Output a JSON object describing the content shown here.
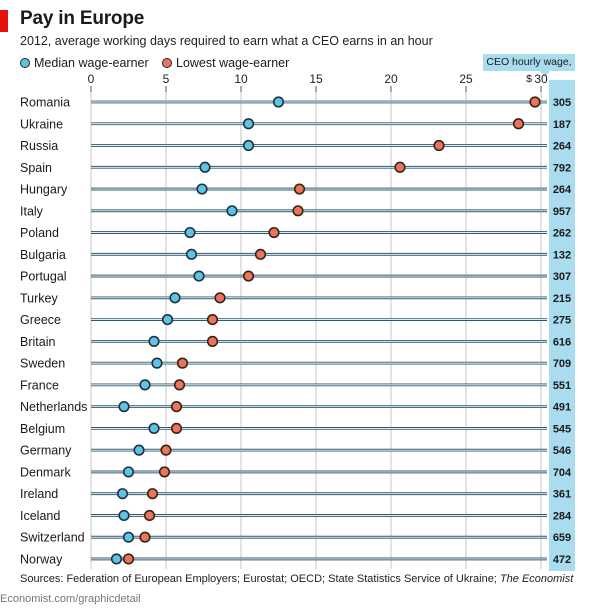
{
  "header": {
    "title": "Pay in Europe",
    "subtitle": "2012, average working days required to earn what a CEO earns in an hour"
  },
  "legend": {
    "median_label": "Median wage-earner",
    "lowest_label": "Lowest wage-earner",
    "ceo_label": "CEO hourly wage, $"
  },
  "colors": {
    "median": "#5ec3e4",
    "lowest": "#e8765a",
    "accent_red": "#e3120b",
    "wage_box": "#a8dcee",
    "row_line": "#2c5a72"
  },
  "footer": {
    "source": "Sources: Federation of European Employers; Eurostat; OECD; State Statistics Service of Ukraine; ",
    "source_italic": "The Economist",
    "site": "Economist.com/graphicdetail"
  },
  "chart_data": {
    "type": "scatter",
    "title": "Pay in Europe",
    "subtitle": "2012, average working days required to earn what a CEO earns in an hour",
    "xlim": [
      0,
      30
    ],
    "xticks": [
      0,
      5,
      10,
      15,
      20,
      25,
      30
    ],
    "grid": true,
    "legend_position": "top-left",
    "categories": [
      "Romania",
      "Ukraine",
      "Russia",
      "Spain",
      "Hungary",
      "Italy",
      "Poland",
      "Bulgaria",
      "Portugal",
      "Turkey",
      "Greece",
      "Britain",
      "Sweden",
      "France",
      "Netherlands",
      "Belgium",
      "Germany",
      "Denmark",
      "Ireland",
      "Iceland",
      "Switzerland",
      "Norway"
    ],
    "series": [
      {
        "name": "Median wage-earner",
        "values": [
          12.5,
          10.5,
          10.5,
          7.6,
          7.4,
          9.4,
          6.6,
          6.7,
          7.2,
          5.6,
          5.1,
          4.2,
          4.4,
          3.6,
          2.2,
          4.2,
          3.2,
          2.5,
          2.1,
          2.2,
          2.5,
          1.7
        ]
      },
      {
        "name": "Lowest wage-earner",
        "values": [
          29.6,
          28.5,
          23.2,
          20.6,
          13.9,
          13.8,
          12.2,
          11.3,
          10.5,
          8.6,
          8.1,
          8.1,
          6.1,
          5.9,
          5.7,
          5.7,
          5.0,
          4.9,
          4.1,
          3.9,
          3.6,
          2.5
        ]
      },
      {
        "name": "CEO hourly wage, $",
        "values": [
          305,
          187,
          264,
          792,
          264,
          957,
          262,
          132,
          307,
          215,
          275,
          616,
          709,
          551,
          491,
          545,
          546,
          704,
          361,
          284,
          659,
          472
        ]
      }
    ]
  }
}
